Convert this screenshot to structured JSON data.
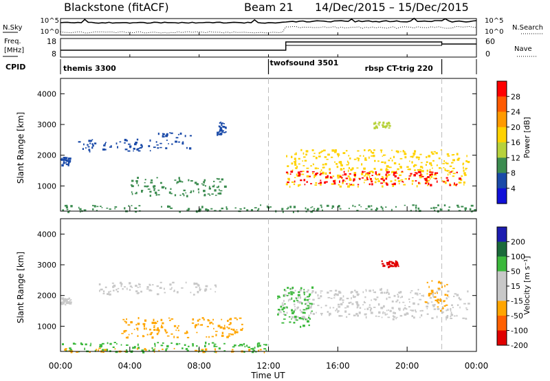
{
  "header": {
    "station": "Blackstone (fitACF)",
    "beam": "Beam 21",
    "date_range": "14/Dec/2015 – 15/Dec/2015"
  },
  "params_panel": {
    "nsky_label": "N.Sky",
    "nsearch_label": "N.Search",
    "nsky_ticks": [
      "10^5",
      "10^0"
    ],
    "nsearch_ticks": [
      "10^5",
      "10^0"
    ],
    "freq_label_1": "Freq.",
    "freq_label_2": "[MHz]",
    "freq_ticks": [
      "18",
      "8"
    ],
    "nave_label": "Nave",
    "nave_ticks": [
      "60",
      "0"
    ],
    "freq_step_hour": 13.0,
    "freq_step2_hour": 22.0
  },
  "cpid": {
    "label": "CPID",
    "segments": [
      {
        "name": "themis 3300",
        "start": 0,
        "end": 12.0
      },
      {
        "name": "twofsound 3501",
        "start": 12.0,
        "end": 22.0
      },
      {
        "name": "rbsp CT-trig 220",
        "start": 22.0,
        "end": 24.0
      }
    ]
  },
  "colorbars": {
    "power": {
      "label": "Power [dB]",
      "ticks": [
        "28",
        "24",
        "20",
        "16",
        "12",
        "8",
        "4"
      ],
      "colors": [
        "#ff0000",
        "#ff5a00",
        "#ff9a00",
        "#ffd200",
        "#b7d23c",
        "#3c8c50",
        "#1a4aa8",
        "#1010d8"
      ]
    },
    "velocity": {
      "label": "Velocity [m s⁻¹]",
      "ticks": [
        "200",
        "100",
        "50",
        "15",
        "-15",
        "-50",
        "-100",
        "-200"
      ],
      "colors": [
        "#1c1cb0",
        "#1b6a3a",
        "#3cb83c",
        "#c8c8c8",
        "#c8c8c8",
        "#ffa500",
        "#ff6000",
        "#e00000"
      ]
    }
  },
  "chart_data": {
    "type": "heatmap",
    "x_label": "Time UT",
    "x_ticks": [
      "00:00",
      "04:00",
      "08:00",
      "12:00",
      "16:00",
      "20:00",
      "00:00"
    ],
    "x_range_hours": [
      0,
      24
    ],
    "y_label": "Slant Range [km]",
    "y_ticks": [
      "4000",
      "3000",
      "2000",
      "1000"
    ],
    "y_range_km": [
      180,
      4500
    ],
    "vertical_markers_hours": [
      12.0,
      22.0
    ],
    "panels": [
      {
        "name": "power",
        "features": [
          {
            "t0": 0.0,
            "t1": 0.6,
            "r0": 1700,
            "r1": 1950,
            "level": "#1a4aa8"
          },
          {
            "t0": 1.0,
            "t1": 5.5,
            "r0": 2150,
            "r1": 2550,
            "level": "#1a4aa8"
          },
          {
            "t0": 4.0,
            "t1": 9.5,
            "r0": 700,
            "r1": 1300,
            "level": "#3c8c50"
          },
          {
            "t0": 5.5,
            "t1": 7.5,
            "r0": 2250,
            "r1": 2750,
            "level": "#1a4aa8"
          },
          {
            "t0": 9.0,
            "t1": 9.5,
            "r0": 2700,
            "r1": 3100,
            "level": "#1a4aa8"
          },
          {
            "t0": 13.0,
            "t1": 23.5,
            "r0": 1000,
            "r1": 2200,
            "level": "#ffd200"
          },
          {
            "t0": 13.0,
            "t1": 23.0,
            "r0": 1050,
            "r1": 1500,
            "level": "#ff0000"
          },
          {
            "t0": 18.0,
            "t1": 19.0,
            "r0": 2900,
            "r1": 3100,
            "level": "#b7d23c"
          },
          {
            "t0": 0.0,
            "t1": 24.0,
            "r0": 180,
            "r1": 400,
            "level": "#3c8c50"
          }
        ]
      },
      {
        "name": "velocity",
        "features": [
          {
            "t0": 0.0,
            "t1": 0.6,
            "r0": 1700,
            "r1": 1950,
            "level": "#c8c8c8"
          },
          {
            "t0": 2.0,
            "t1": 9.0,
            "r0": 2050,
            "r1": 2450,
            "level": "#c8c8c8"
          },
          {
            "t0": 3.5,
            "t1": 10.5,
            "r0": 650,
            "r1": 1300,
            "level": "#ffa500"
          },
          {
            "t0": 12.5,
            "t1": 23.5,
            "r0": 1250,
            "r1": 2250,
            "level": "#c8c8c8"
          },
          {
            "t0": 12.5,
            "t1": 14.5,
            "r0": 1000,
            "r1": 2300,
            "level": "#3cb83c"
          },
          {
            "t0": 18.5,
            "t1": 19.5,
            "r0": 2950,
            "r1": 3150,
            "level": "#e00000"
          },
          {
            "t0": 21.0,
            "t1": 22.3,
            "r0": 1500,
            "r1": 2500,
            "level": "#ffa500"
          },
          {
            "t0": 0.0,
            "t1": 12.0,
            "r0": 180,
            "r1": 500,
            "level": "#3cb83c"
          },
          {
            "t0": 0.0,
            "t1": 12.0,
            "r0": 180,
            "r1": 300,
            "level": "#ffa500"
          }
        ]
      }
    ]
  }
}
